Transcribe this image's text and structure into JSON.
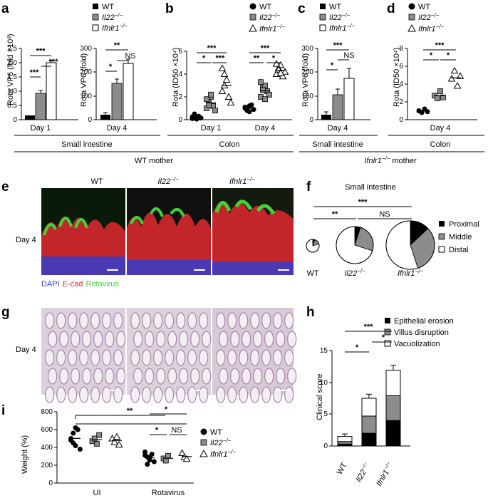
{
  "panel_labels": [
    "a",
    "b",
    "c",
    "d",
    "e",
    "f",
    "g",
    "h",
    "i"
  ],
  "legend": {
    "wt": "WT",
    "il22": "Il22",
    "ifnlr1": "Ifnlr1",
    "ko_sup": "−/−"
  },
  "colors": {
    "wt": "#000000",
    "il22": "#8c8c8c",
    "ifnlr1": "#ffffff",
    "dapi": "#2a3fd6",
    "ecad": "#e0302a",
    "rota": "#3fd33a",
    "he": "#d8c7d9"
  },
  "groups": {
    "small_intestine": "Small intestine",
    "colon": "Colon",
    "wt_mother": "WT mother",
    "ifnlr1_mother_name": "Ifnlr1",
    "mother": "mother"
  },
  "labels": {
    "day1": "Day 1",
    "day4": "Day 4"
  },
  "sig": {
    "s1": "*",
    "s2": "**",
    "s3": "***",
    "ns": "NS"
  },
  "chart_data": [
    {
      "panel": "a",
      "type": "bar",
      "ylabel": "Rota VP6 (fold ×10³)",
      "ylim": [
        0,
        2.5
      ],
      "yticks": [
        "0",
        "0.5",
        "1.0",
        "1.5",
        "2.0",
        "2.5"
      ],
      "categories": [
        "Day 1"
      ],
      "series": [
        {
          "name": "WT",
          "values": [
            0.15
          ]
        },
        {
          "name": "Il22−/−",
          "values": [
            0.92
          ]
        },
        {
          "name": "Ifnlr1−/−",
          "values": [
            2.0
          ]
        }
      ]
    },
    {
      "panel": "a2",
      "type": "bar",
      "ylabel": "Rota VP6 (fold)",
      "ylim": [
        0,
        300
      ],
      "yticks": [
        "0",
        "100",
        "200",
        "300"
      ],
      "categories": [
        "Day 4"
      ],
      "series": [
        {
          "name": "WT",
          "values": [
            22
          ]
        },
        {
          "name": "Il22−/−",
          "values": [
            153
          ]
        },
        {
          "name": "Ifnlr1−/−",
          "values": [
            238
          ]
        }
      ]
    },
    {
      "panel": "b",
      "type": "scatter",
      "ylabel": "Rota (ID50 ×10⁴)",
      "ylim": [
        0,
        6
      ],
      "yticks": [
        "0",
        "2",
        "4",
        "6"
      ],
      "categories": [
        "Day 1",
        "Day 4"
      ],
      "series": [
        {
          "name": "WT",
          "values": [
            [
              0.1,
              0.2,
              0.05,
              0.3,
              0.15,
              0.25,
              0.5,
              0.1
            ],
            [
              1.0,
              0.8,
              1.2,
              1.3,
              0.9,
              1.1,
              1.0,
              0.7
            ]
          ]
        },
        {
          "name": "Il22−/−",
          "values": [
            [
              1.0,
              1.5,
              2.0,
              1.2,
              0.8,
              1.8,
              1.3,
              2.2
            ],
            [
              2.0,
              2.8,
              3.0,
              2.5,
              2.2,
              3.3,
              2.6,
              1.8
            ]
          ]
        },
        {
          "name": "Ifnlr1−/−",
          "values": [
            [
              2.5,
              4.0,
              3.5,
              2.0,
              1.5,
              4.5,
              3.0
            ],
            [
              4.0,
              4.5,
              4.8,
              3.8,
              4.2,
              4.9,
              4.4,
              4.1
            ]
          ]
        }
      ]
    },
    {
      "panel": "c",
      "type": "bar",
      "ylabel": "Rota VP6 (fold)",
      "ylim": [
        0,
        300
      ],
      "yticks": [
        "0",
        "100",
        "200",
        "300"
      ],
      "categories": [
        "Day 4"
      ],
      "series": [
        {
          "name": "WT",
          "values": [
            22
          ]
        },
        {
          "name": "Il22−/−",
          "values": [
            105
          ]
        },
        {
          "name": "Ifnlr1−/−",
          "values": [
            172
          ]
        }
      ]
    },
    {
      "panel": "d",
      "type": "scatter",
      "ylabel": "Rota (ID50 ×10⁴)",
      "ylim": [
        0,
        8
      ],
      "yticks": [
        "0",
        "2",
        "4",
        "6",
        "8"
      ],
      "categories": [
        "Day 4"
      ],
      "series": [
        {
          "name": "WT",
          "values": [
            [
              1.0,
              0.8,
              1.2,
              0.9
            ]
          ]
        },
        {
          "name": "Il22−/−",
          "values": [
            [
              2.7,
              2.4,
              3.2,
              2.5
            ]
          ]
        },
        {
          "name": "Ifnlr1−/−",
          "values": [
            [
              4.6,
              5.5,
              3.8,
              4.9
            ]
          ]
        }
      ]
    },
    {
      "panel": "f",
      "type": "pie",
      "title": "Small intestine",
      "legend": [
        "Proximal",
        "Middle",
        "Distal"
      ],
      "pies": [
        {
          "group": "WT",
          "values": [
            0.05,
            0.15,
            0.8
          ]
        },
        {
          "group": "Il22−/−",
          "values": [
            0.05,
            0.25,
            0.7
          ]
        },
        {
          "group": "Ifnlr1−/−",
          "values": [
            0.13,
            0.32,
            0.55
          ]
        }
      ]
    },
    {
      "panel": "h",
      "type": "bar",
      "stacked": true,
      "ylabel": "Clinical score",
      "ylim": [
        0,
        15
      ],
      "yticks": [
        "0",
        "5",
        "10",
        "15"
      ],
      "categories": [
        "WT",
        "Il22−/−",
        "Ifnlr1−/−"
      ],
      "series": [
        {
          "name": "Epithelial erosion",
          "values": [
            0.3,
            2.0,
            4.0
          ]
        },
        {
          "name": "Villus disruption",
          "values": [
            0.4,
            2.7,
            3.9
          ]
        },
        {
          "name": "Vacuolization",
          "values": [
            0.8,
            2.8,
            4.0
          ]
        }
      ]
    },
    {
      "panel": "i",
      "type": "scatter",
      "ylabel": "Weight (%)",
      "ylim": [
        0,
        800
      ],
      "yticks": [
        "0",
        "200",
        "400",
        "600",
        "800"
      ],
      "categories": [
        "UI",
        "Rotavirus"
      ],
      "series": [
        {
          "name": "WT",
          "values": [
            [
              480,
              560,
              420,
              600,
              380,
              500,
              450,
              620,
              520,
              350,
              470,
              540,
              400,
              580,
              490,
              430
            ]
          ]
        },
        {
          "name": "Il22−/−",
          "values": [
            [
              470,
              500,
              440,
              540,
              460,
              420,
              510
            ]
          ]
        },
        {
          "name": "Ifnlr1−/−",
          "values": [
            [
              500,
              460,
              520,
              430,
              560,
              480,
              450
            ]
          ]
        }
      ]
    }
  ]
}
